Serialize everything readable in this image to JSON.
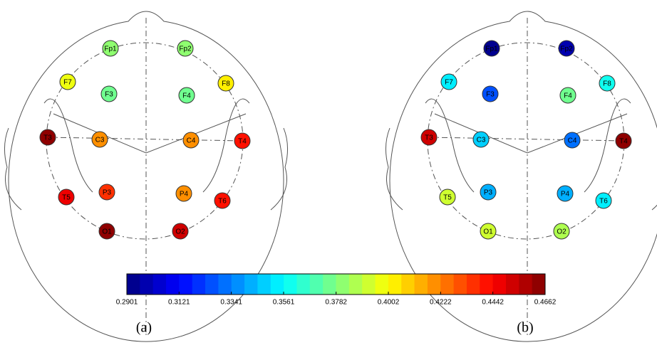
{
  "chart_data": [
    {
      "type": "topomap",
      "caption": "(a)",
      "categories": [
        "Fp1",
        "Fp2",
        "F7",
        "F3",
        "F4",
        "F8",
        "T3",
        "C3",
        "C4",
        "T4",
        "T5",
        "P3",
        "P4",
        "T6",
        "O1",
        "O2"
      ],
      "values": [
        0.38,
        0.38,
        0.395,
        0.375,
        0.375,
        0.402,
        0.466,
        0.42,
        0.42,
        0.44,
        0.445,
        0.435,
        0.42,
        0.44,
        0.466,
        0.45
      ]
    },
    {
      "type": "topomap",
      "caption": "(b)",
      "categories": [
        "Fp1",
        "Fp2",
        "F7",
        "F3",
        "F4",
        "F8",
        "T3",
        "C3",
        "C4",
        "T4",
        "T5",
        "P3",
        "P4",
        "T6",
        "O1",
        "O2"
      ],
      "values": [
        0.292,
        0.3,
        0.355,
        0.325,
        0.375,
        0.358,
        0.45,
        0.35,
        0.33,
        0.466,
        0.39,
        0.34,
        0.345,
        0.352,
        0.39,
        0.385
      ]
    },
    {
      "type": "colorbar",
      "colormap": "jet",
      "xlim": [
        0.2901,
        0.4662
      ],
      "xticks": [
        0.2901,
        0.3121,
        0.3341,
        0.3561,
        0.3782,
        0.4002,
        0.4222,
        0.4442,
        0.4662
      ]
    }
  ]
}
